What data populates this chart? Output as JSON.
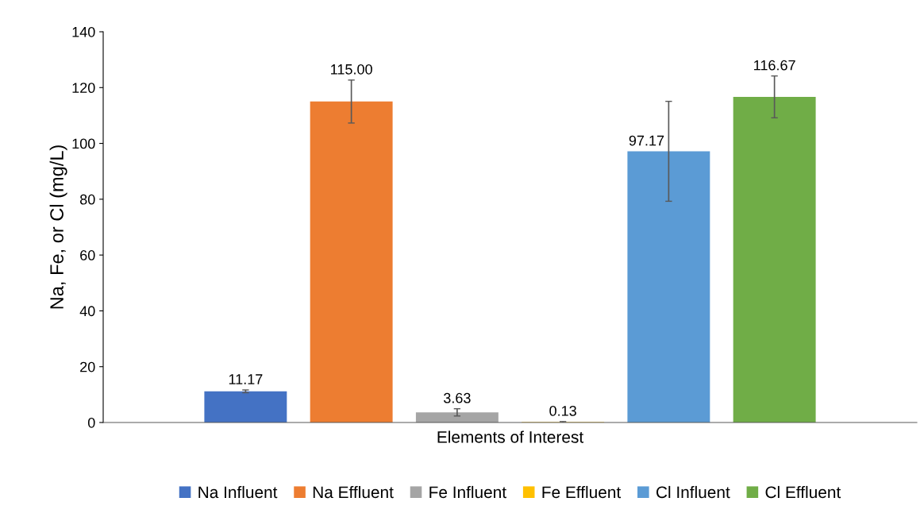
{
  "chart_data": {
    "type": "bar",
    "xlabel": "Elements of Interest",
    "ylabel": "Na, Fe, or Cl (mg/L)",
    "categories": [
      null
    ],
    "series": [
      {
        "name": "Na Influent",
        "color": "#4472c4",
        "values": [
          11.17
        ],
        "errors": [
          0.5
        ]
      },
      {
        "name": "Na Effluent",
        "color": "#ed7d31",
        "values": [
          115.0
        ],
        "errors": [
          7.7
        ],
        "value_labels": [
          "115.00"
        ]
      },
      {
        "name": "Fe Influent",
        "color": "#a5a5a5",
        "values": [
          3.63
        ],
        "errors": [
          1.3
        ]
      },
      {
        "name": "Fe Effluent",
        "color": "#ffc000",
        "values": [
          0.13
        ],
        "errors": [
          0.2
        ]
      },
      {
        "name": "Cl Influent",
        "color": "#5b9bd5",
        "values": [
          97.17
        ],
        "errors": [
          17.9
        ]
      },
      {
        "name": "Cl Effluent",
        "color": "#70ad47",
        "values": [
          116.67
        ],
        "errors": [
          7.5
        ]
      }
    ],
    "ylim": [
      0,
      140
    ],
    "yticks": [
      0,
      20,
      40,
      60,
      80,
      100,
      120,
      140
    ],
    "data_labels": true,
    "grid": false,
    "legend": "bottom"
  }
}
